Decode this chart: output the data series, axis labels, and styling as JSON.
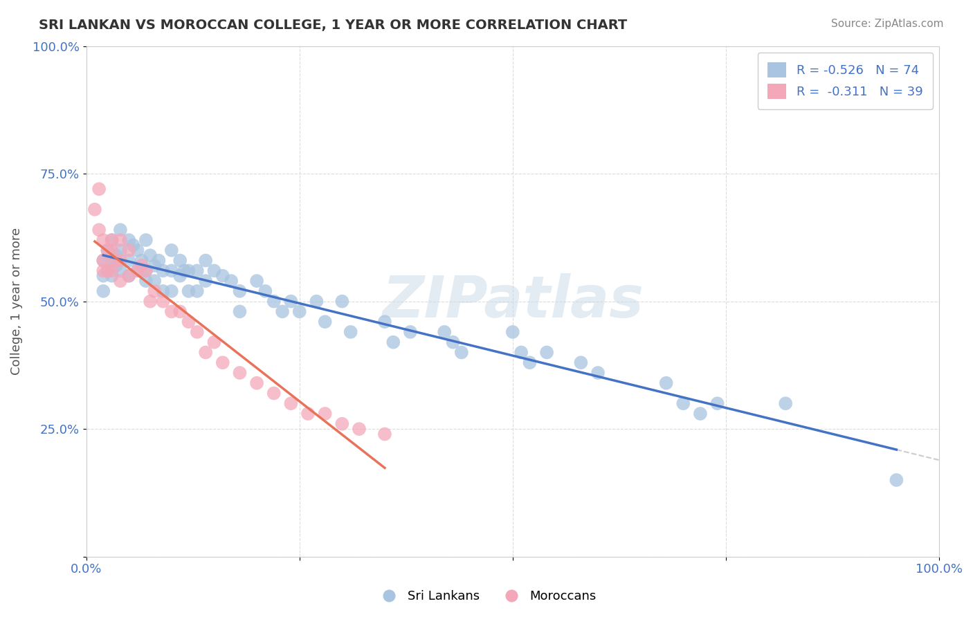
{
  "title": "SRI LANKAN VS MOROCCAN COLLEGE, 1 YEAR OR MORE CORRELATION CHART",
  "source_text": "Source: ZipAtlas.com",
  "ylabel": "College, 1 year or more",
  "xlabel": "",
  "xlim": [
    0.0,
    1.0
  ],
  "ylim": [
    0.0,
    1.0
  ],
  "x_tick_labels": [
    "0.0%",
    "100.0%"
  ],
  "y_tick_labels": [
    "25.0%",
    "50.0%",
    "75.0%",
    "100.0%"
  ],
  "watermark": "ZIPatlas",
  "sri_lankan_color": "#a8c4e0",
  "moroccan_color": "#f4a7b9",
  "sri_lankan_line_color": "#4472c4",
  "moroccan_line_color": "#e8735a",
  "legend_sri_r": "-0.526",
  "legend_sri_n": "74",
  "legend_mor_r": "-0.311",
  "legend_mor_n": "39",
  "sri_lankans_label": "Sri Lankans",
  "moroccans_label": "Moroccans",
  "sri_lankans_x": [
    0.02,
    0.02,
    0.02,
    0.025,
    0.025,
    0.03,
    0.03,
    0.03,
    0.035,
    0.035,
    0.04,
    0.04,
    0.04,
    0.05,
    0.05,
    0.05,
    0.055,
    0.06,
    0.06,
    0.065,
    0.07,
    0.07,
    0.07,
    0.075,
    0.08,
    0.08,
    0.085,
    0.09,
    0.09,
    0.1,
    0.1,
    0.1,
    0.11,
    0.11,
    0.115,
    0.12,
    0.12,
    0.13,
    0.13,
    0.14,
    0.14,
    0.15,
    0.16,
    0.17,
    0.18,
    0.18,
    0.2,
    0.21,
    0.22,
    0.23,
    0.24,
    0.25,
    0.27,
    0.28,
    0.3,
    0.31,
    0.35,
    0.36,
    0.38,
    0.42,
    0.43,
    0.44,
    0.5,
    0.51,
    0.52,
    0.54,
    0.58,
    0.6,
    0.68,
    0.7,
    0.72,
    0.74,
    0.82,
    0.95
  ],
  "sri_lankans_y": [
    0.58,
    0.55,
    0.52,
    0.6,
    0.56,
    0.62,
    0.58,
    0.55,
    0.59,
    0.57,
    0.64,
    0.6,
    0.56,
    0.62,
    0.58,
    0.55,
    0.61,
    0.6,
    0.56,
    0.58,
    0.62,
    0.56,
    0.54,
    0.59,
    0.57,
    0.54,
    0.58,
    0.56,
    0.52,
    0.6,
    0.56,
    0.52,
    0.58,
    0.55,
    0.56,
    0.56,
    0.52,
    0.56,
    0.52,
    0.58,
    0.54,
    0.56,
    0.55,
    0.54,
    0.52,
    0.48,
    0.54,
    0.52,
    0.5,
    0.48,
    0.5,
    0.48,
    0.5,
    0.46,
    0.5,
    0.44,
    0.46,
    0.42,
    0.44,
    0.44,
    0.42,
    0.4,
    0.44,
    0.4,
    0.38,
    0.4,
    0.38,
    0.36,
    0.34,
    0.3,
    0.28,
    0.3,
    0.3,
    0.15
  ],
  "moroccans_x": [
    0.01,
    0.015,
    0.015,
    0.02,
    0.02,
    0.02,
    0.025,
    0.025,
    0.03,
    0.03,
    0.03,
    0.035,
    0.04,
    0.04,
    0.04,
    0.05,
    0.05,
    0.06,
    0.065,
    0.07,
    0.075,
    0.08,
    0.09,
    0.1,
    0.11,
    0.12,
    0.13,
    0.14,
    0.15,
    0.16,
    0.18,
    0.2,
    0.22,
    0.24,
    0.26,
    0.28,
    0.3,
    0.32,
    0.35
  ],
  "moroccans_y": [
    0.68,
    0.72,
    0.64,
    0.62,
    0.58,
    0.56,
    0.6,
    0.56,
    0.62,
    0.6,
    0.56,
    0.58,
    0.62,
    0.58,
    0.54,
    0.6,
    0.55,
    0.56,
    0.57,
    0.56,
    0.5,
    0.52,
    0.5,
    0.48,
    0.48,
    0.46,
    0.44,
    0.4,
    0.42,
    0.38,
    0.36,
    0.34,
    0.32,
    0.3,
    0.28,
    0.28,
    0.26,
    0.25,
    0.24
  ],
  "background_color": "#ffffff",
  "grid_color": "#cccccc",
  "title_color": "#333333",
  "axis_label_color": "#555555",
  "tick_label_color": "#4472c4",
  "source_color": "#888888"
}
